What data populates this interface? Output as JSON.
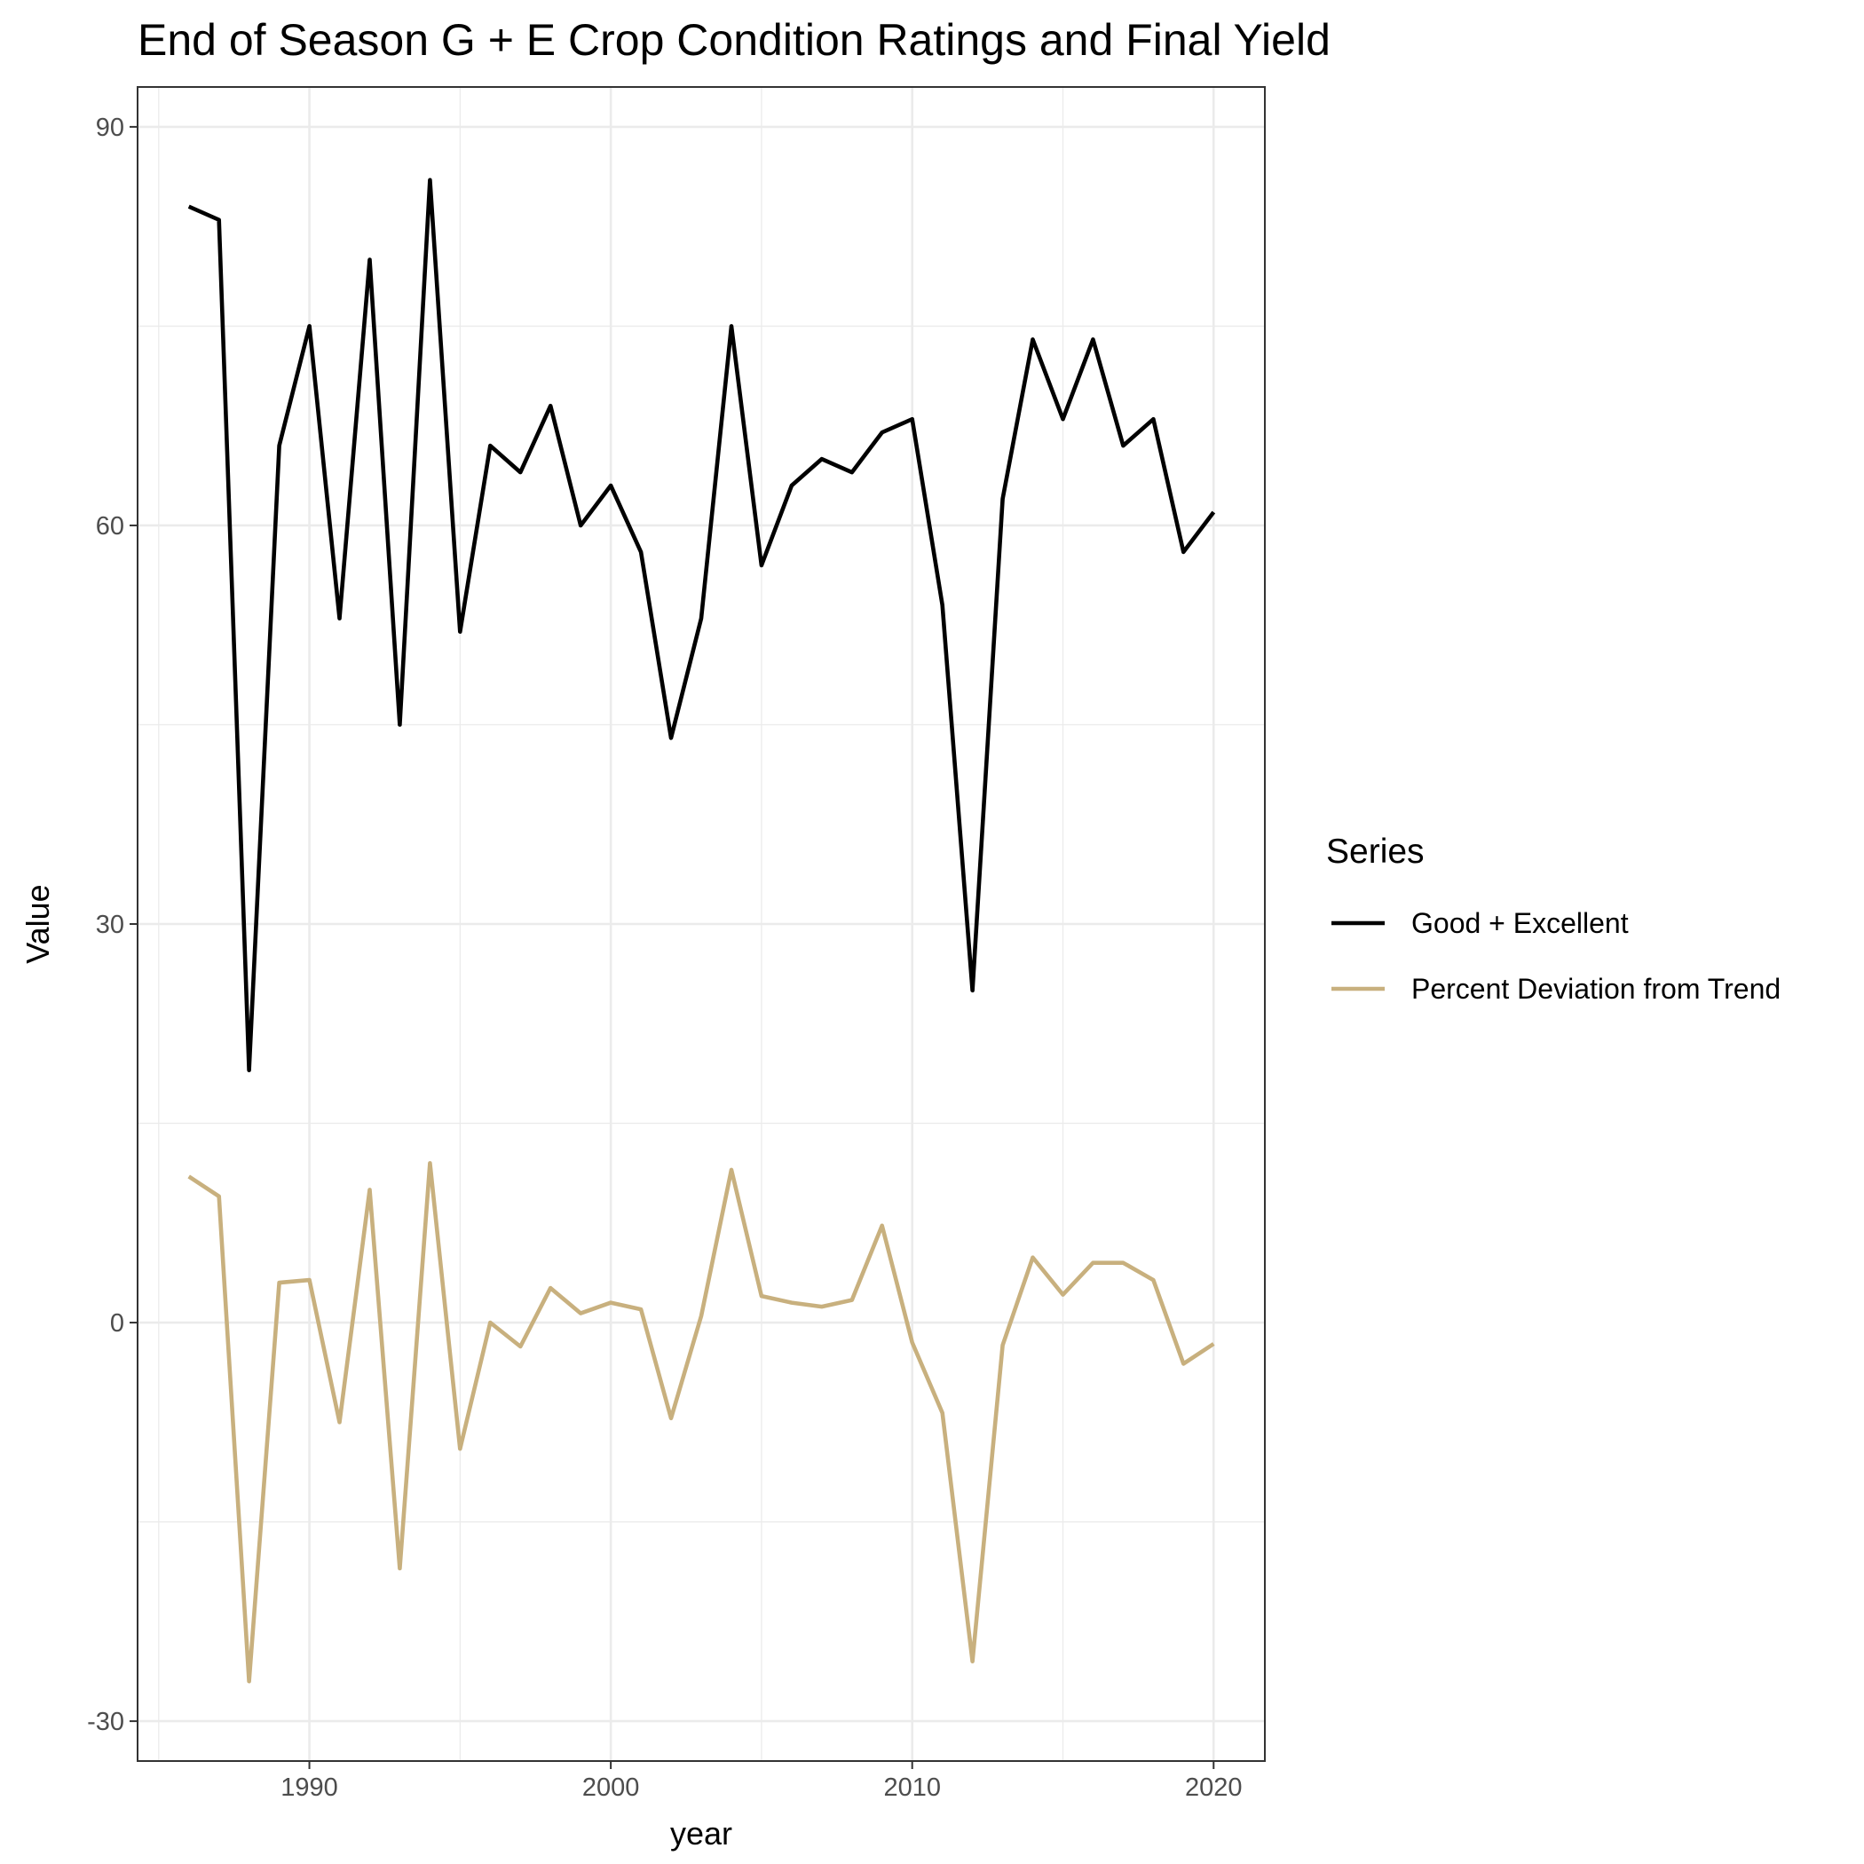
{
  "chart_data": {
    "type": "line",
    "title": "End of Season G + E Crop Condition Ratings and Final Yield",
    "xlabel": "year",
    "ylabel": "Value",
    "xlim": [
      1984.3,
      2021.7
    ],
    "ylim": [
      -33,
      93
    ],
    "x_ticks": [
      1990,
      2000,
      2010,
      2020
    ],
    "y_ticks": [
      -30,
      0,
      30,
      60,
      90
    ],
    "x_minor": [
      1985,
      1995,
      2005,
      2015
    ],
    "y_minor": [
      -15,
      15,
      45,
      75
    ],
    "grid": true,
    "legend": {
      "title": "Series",
      "position": "right"
    },
    "x": [
      1986,
      1987,
      1988,
      1989,
      1990,
      1991,
      1992,
      1993,
      1994,
      1995,
      1996,
      1997,
      1998,
      1999,
      2000,
      2001,
      2002,
      2003,
      2004,
      2005,
      2006,
      2007,
      2008,
      2009,
      2010,
      2011,
      2012,
      2013,
      2014,
      2015,
      2016,
      2017,
      2018,
      2019,
      2020
    ],
    "series": [
      {
        "name": "Good + Excellent",
        "color": "#000000",
        "values": [
          84,
          83,
          19,
          66,
          75,
          53,
          80,
          45,
          86,
          52,
          66,
          64,
          69,
          60,
          63,
          58,
          44,
          53,
          75,
          57,
          63,
          65,
          64,
          67,
          68,
          54,
          25,
          62,
          74,
          68,
          74,
          66,
          68,
          58,
          61
        ]
      },
      {
        "name": "Percent Deviation from Trend",
        "color": "#c8b07e",
        "values": [
          11,
          9.5,
          -27,
          3,
          3.2,
          -7.5,
          10,
          -18.5,
          12,
          -9.5,
          0,
          -1.8,
          2.6,
          0.7,
          1.5,
          1,
          -7.2,
          0.5,
          11.5,
          2,
          1.5,
          1.2,
          1.7,
          7.3,
          -1.5,
          -6.8,
          -25.5,
          -1.7,
          4.9,
          2.1,
          4.5,
          4.5,
          3.2,
          -3.1,
          -1.6
        ]
      }
    ]
  }
}
